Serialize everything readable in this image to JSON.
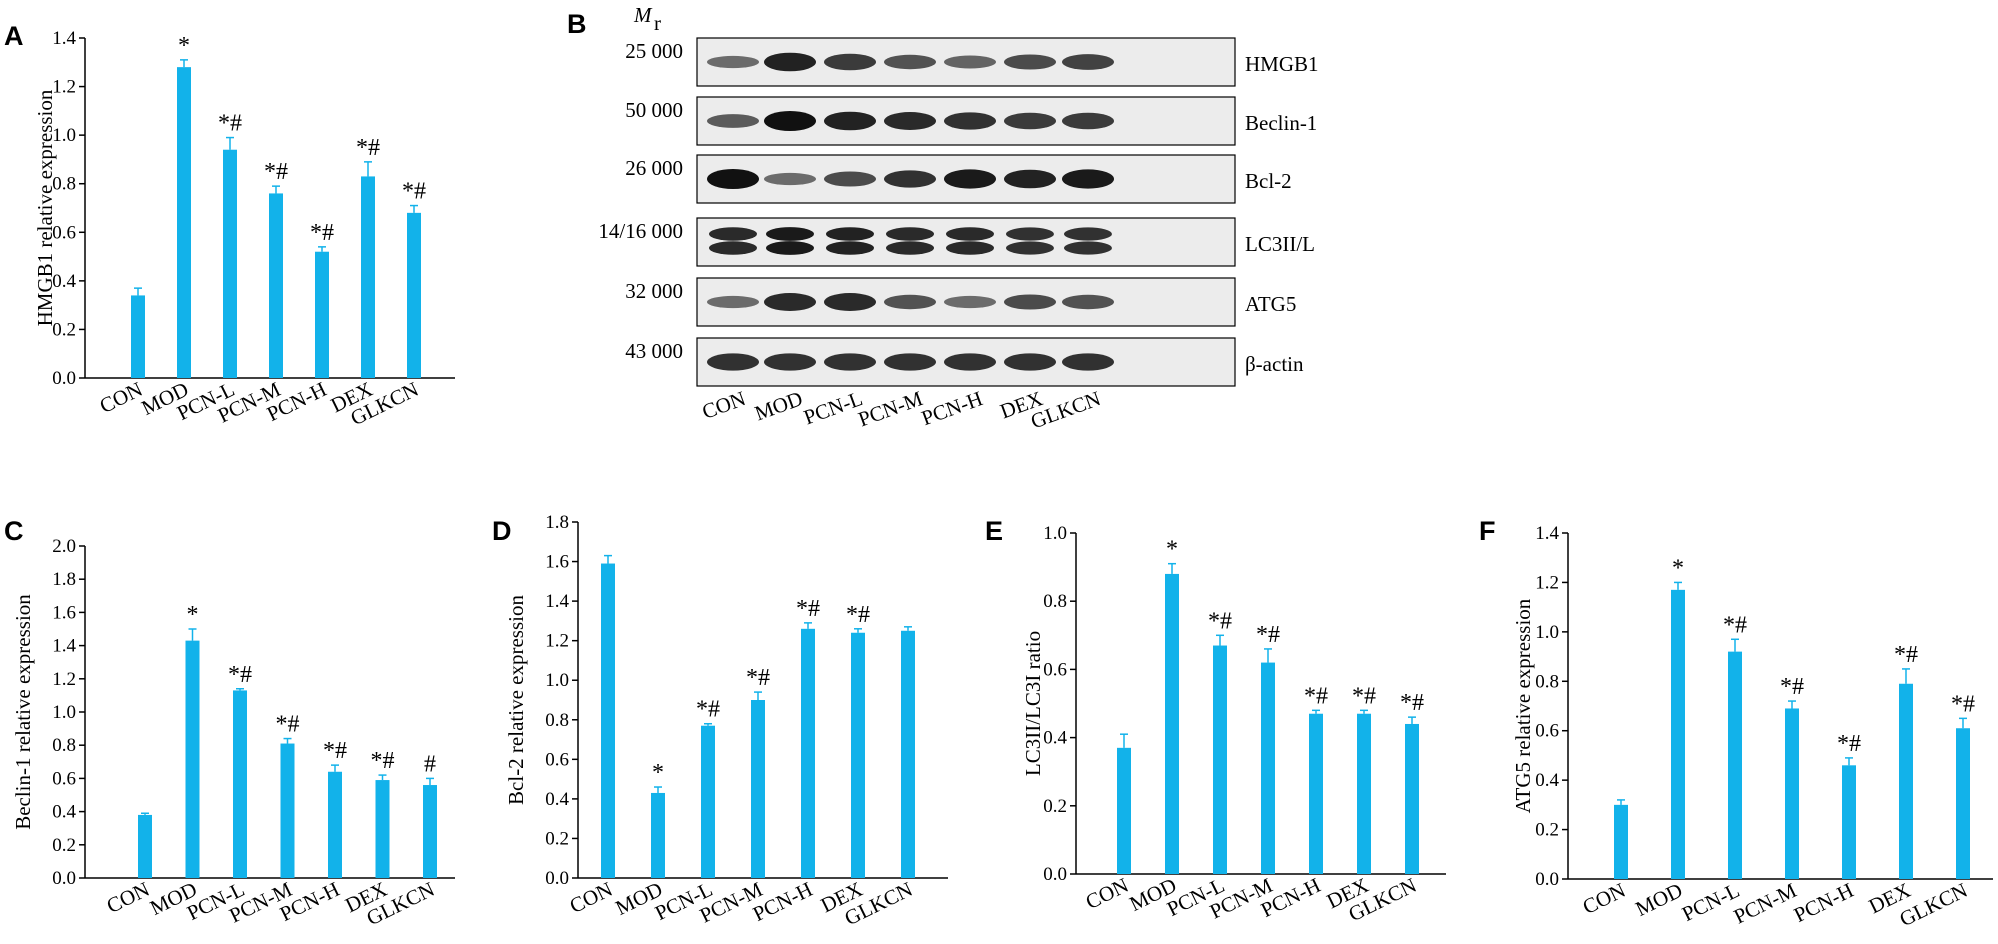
{
  "bar_color": "#12b2ea",
  "chart_data": [
    {
      "panel": "A",
      "type": "bar",
      "categories": [
        "CON",
        "MOD",
        "PCN-L",
        "PCN-M",
        "PCN-H",
        "DEX",
        "GLKCN"
      ],
      "values": [
        0.34,
        1.28,
        0.94,
        0.76,
        0.52,
        0.83,
        0.68
      ],
      "errors": [
        0.03,
        0.03,
        0.05,
        0.03,
        0.02,
        0.06,
        0.03
      ],
      "annotations": [
        "",
        "*",
        "*#",
        "*#",
        "*#",
        "*#",
        "*#"
      ],
      "ylabel": "HMGB1 relative expression",
      "ylim": [
        0,
        1.4
      ],
      "yticks": [
        "0.0",
        "0.2",
        "0.4",
        "0.6",
        "0.8",
        "1.0",
        "1.2",
        "1.4"
      ]
    },
    {
      "panel": "C",
      "type": "bar",
      "categories": [
        "CON",
        "MOD",
        "PCN-L",
        "PCN-M",
        "PCN-H",
        "DEX",
        "GLKCN"
      ],
      "values": [
        0.38,
        1.43,
        1.13,
        0.81,
        0.64,
        0.59,
        0.56
      ],
      "errors": [
        0.01,
        0.07,
        0.01,
        0.03,
        0.04,
        0.03,
        0.04
      ],
      "annotations": [
        "",
        "*",
        "*#",
        "*#",
        "*#",
        "*#",
        "#"
      ],
      "ylabel": "Beclin-1 relative expression",
      "ylim": [
        0,
        2.0
      ],
      "yticks": [
        "0.0",
        "0.2",
        "0.4",
        "0.6",
        "0.8",
        "1.0",
        "1.2",
        "1.4",
        "1.6",
        "1.8",
        "2.0"
      ]
    },
    {
      "panel": "D",
      "type": "bar",
      "categories": [
        "CON",
        "MOD",
        "PCN-L",
        "PCN-M",
        "PCN-H",
        "DEX",
        "GLKCN"
      ],
      "values": [
        1.59,
        0.43,
        0.77,
        0.9,
        1.26,
        1.24,
        1.25
      ],
      "errors": [
        0.04,
        0.03,
        0.01,
        0.04,
        0.03,
        0.02,
        0.02
      ],
      "annotations": [
        "",
        "*",
        "*#",
        "*#",
        "*#",
        "*#",
        ""
      ],
      "ylabel": "Bcl-2 relative expression",
      "ylim": [
        0,
        1.8
      ],
      "yticks": [
        "0.0",
        "0.2",
        "0.4",
        "0.6",
        "0.8",
        "1.0",
        "1.2",
        "1.4",
        "1.6",
        "1.8"
      ]
    },
    {
      "panel": "E",
      "type": "bar",
      "categories": [
        "CON",
        "MOD",
        "PCN-L",
        "PCN-M",
        "PCN-H",
        "DEX",
        "GLKCN"
      ],
      "values": [
        0.37,
        0.88,
        0.67,
        0.62,
        0.47,
        0.47,
        0.44
      ],
      "errors": [
        0.04,
        0.03,
        0.03,
        0.04,
        0.01,
        0.01,
        0.02
      ],
      "annotations": [
        "",
        "*",
        "*#",
        "*#",
        "*#",
        "*#",
        "*#"
      ],
      "ylabel": "LC3II/LC3I ratio",
      "ylim": [
        0,
        1.0
      ],
      "yticks": [
        "0.0",
        "0.2",
        "0.4",
        "0.6",
        "0.8",
        "1.0"
      ]
    },
    {
      "panel": "F",
      "type": "bar",
      "categories": [
        "CON",
        "MOD",
        "PCN-L",
        "PCN-M",
        "PCN-H",
        "DEX",
        "GLKCN"
      ],
      "values": [
        0.3,
        1.17,
        0.92,
        0.69,
        0.46,
        0.79,
        0.61
      ],
      "errors": [
        0.02,
        0.03,
        0.05,
        0.03,
        0.03,
        0.06,
        0.04
      ],
      "annotations": [
        "",
        "*",
        "*#",
        "*#",
        "*#",
        "*#",
        "*#"
      ],
      "ylabel": "ATG5 relative expression",
      "ylim": [
        0,
        1.4
      ],
      "yticks": [
        "0.0",
        "0.2",
        "0.4",
        "0.6",
        "0.8",
        "1.0",
        "1.2",
        "1.4"
      ]
    }
  ],
  "blot": {
    "panel": "B",
    "mr_label": "M",
    "mr_subscript": "r",
    "lanes": [
      "CON",
      "MOD",
      "PCN-L",
      "PCN-M",
      "PCN-H",
      "DEX",
      "GLKCN"
    ],
    "rows": [
      {
        "protein": "HMGB1",
        "mr": "25 000"
      },
      {
        "protein": "Beclin-1",
        "mr": "50 000"
      },
      {
        "protein": "Bcl-2",
        "mr": "26 000"
      },
      {
        "protein": "LC3II/L",
        "mr": "14/16 000"
      },
      {
        "protein": "ATG5",
        "mr": "32 000"
      },
      {
        "protein": "β-actin",
        "mr": "43 000"
      }
    ],
    "band_intensity": [
      [
        0.45,
        0.9,
        0.75,
        0.6,
        0.5,
        0.65,
        0.7
      ],
      [
        0.55,
        1.0,
        0.9,
        0.85,
        0.8,
        0.75,
        0.75
      ],
      [
        1.0,
        0.45,
        0.65,
        0.8,
        0.95,
        0.9,
        0.95
      ],
      [
        0.85,
        0.95,
        0.9,
        0.85,
        0.85,
        0.8,
        0.8
      ],
      [
        0.45,
        0.85,
        0.85,
        0.6,
        0.45,
        0.65,
        0.6
      ],
      [
        0.8,
        0.8,
        0.8,
        0.8,
        0.8,
        0.8,
        0.8
      ]
    ]
  }
}
